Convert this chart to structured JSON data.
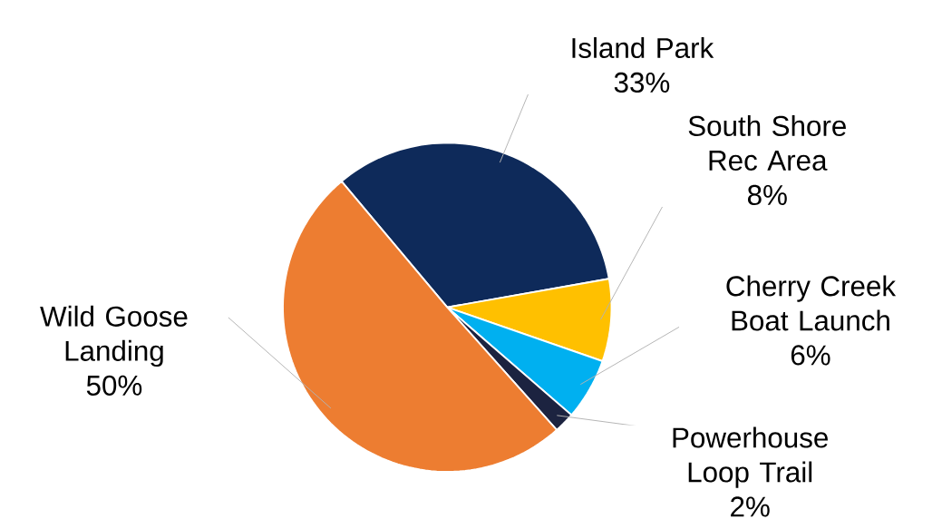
{
  "chart_data": {
    "type": "pie",
    "categories": [
      "Island Park",
      "South Shore Rec Area",
      "Cherry Creek Boat Launch",
      "Powerhouse Loop Trail",
      "Wild Goose Landing"
    ],
    "values": [
      33,
      8,
      6,
      2,
      50
    ],
    "value_labels": [
      "33%",
      "8%",
      "6%",
      "2%",
      "50%"
    ],
    "colors": [
      "#0e2a5a",
      "#ffc000",
      "#00b0f0",
      "#1c2340",
      "#ed7d31"
    ]
  }
}
